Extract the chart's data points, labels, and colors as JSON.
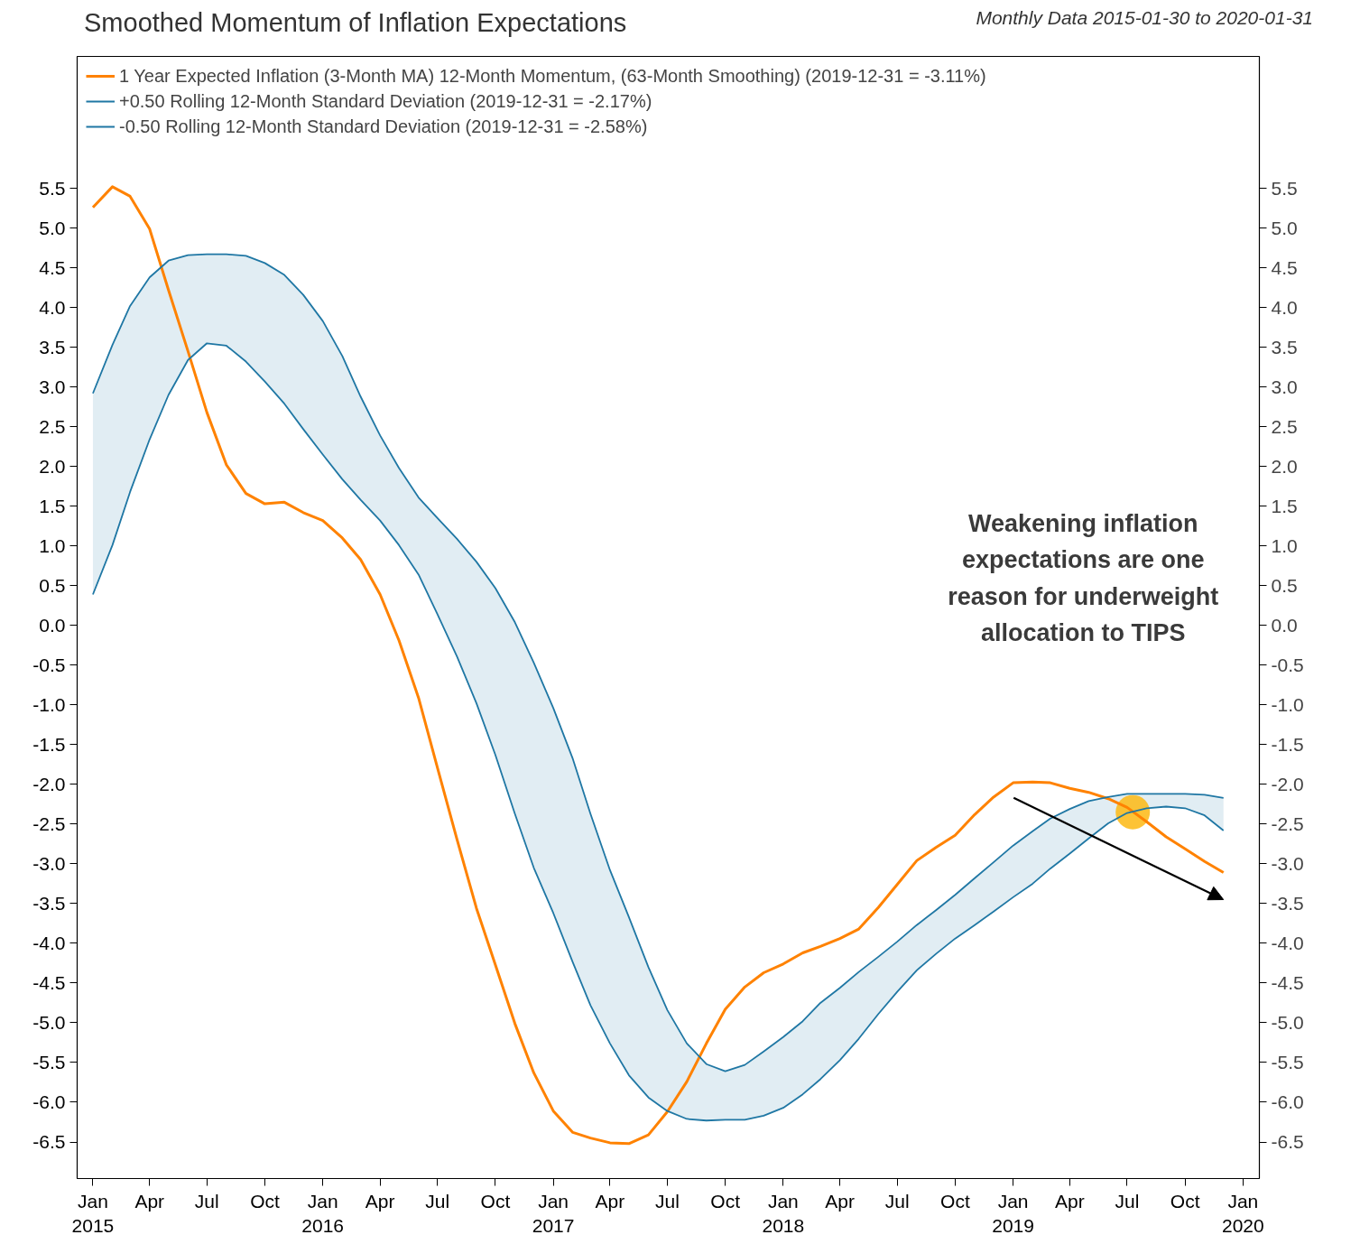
{
  "chart_data": {
    "type": "line",
    "title": "Smoothed Momentum of Inflation Expectations",
    "subtitle": "Monthly Data 2015-01-30 to 2020-01-31",
    "x": [
      "2015-01",
      "2015-02",
      "2015-03",
      "2015-04",
      "2015-05",
      "2015-06",
      "2015-07",
      "2015-08",
      "2015-09",
      "2015-10",
      "2015-11",
      "2015-12",
      "2016-01",
      "2016-02",
      "2016-03",
      "2016-04",
      "2016-05",
      "2016-06",
      "2016-07",
      "2016-08",
      "2016-09",
      "2016-10",
      "2016-11",
      "2016-12",
      "2017-01",
      "2017-02",
      "2017-03",
      "2017-04",
      "2017-05",
      "2017-06",
      "2017-07",
      "2017-08",
      "2017-09",
      "2017-10",
      "2017-11",
      "2017-12",
      "2018-01",
      "2018-02",
      "2018-03",
      "2018-04",
      "2018-05",
      "2018-06",
      "2018-07",
      "2018-08",
      "2018-09",
      "2018-10",
      "2018-11",
      "2018-12",
      "2019-01",
      "2019-02",
      "2019-03",
      "2019-04",
      "2019-05",
      "2019-06",
      "2019-07",
      "2019-08",
      "2019-09",
      "2019-10",
      "2019-11",
      "2019-12"
    ],
    "series": [
      {
        "name": "1 Year Expected Inflation (3-Month MA) 12-Month Momentum, (63-Month Smoothing) (2019-12-31 = -3.11%)",
        "color": "#ff8200",
        "values": [
          5.26,
          5.52,
          5.4,
          4.99,
          4.22,
          3.45,
          2.68,
          2.02,
          1.66,
          1.53,
          1.55,
          1.42,
          1.32,
          1.1,
          0.83,
          0.39,
          -0.19,
          -0.91,
          -1.79,
          -2.69,
          -3.56,
          -4.27,
          -5.01,
          -5.63,
          -6.11,
          -6.38,
          -6.45,
          -6.51,
          -6.52,
          -6.41,
          -6.12,
          -5.74,
          -5.26,
          -4.83,
          -4.55,
          -4.37,
          -4.26,
          -4.12,
          -4.04,
          -3.94,
          -3.82,
          -3.55,
          -3.26,
          -2.96,
          -2.79,
          -2.64,
          -2.38,
          -2.16,
          -1.98,
          -1.97,
          -1.98,
          -2.05,
          -2.1,
          -2.18,
          -2.29,
          -2.47,
          -2.66,
          -2.81,
          -2.97,
          -3.11
        ]
      },
      {
        "type": "scatter",
        "marker": "circle",
        "color": "#fdb913",
        "x": [
          "2019-07-10"
        ],
        "values": [
          -2.35
        ]
      },
      {
        "name": "+0.50 Rolling 12-Month Standard Deviation (2019-12-31 = -2.17%)",
        "color": "#1f77a4",
        "lower": [
          0.39,
          1.01,
          1.68,
          2.34,
          2.9,
          3.34,
          3.55,
          3.52,
          3.32,
          3.07,
          2.79,
          2.47,
          2.15,
          1.84,
          1.58,
          1.32,
          1.01,
          0.64,
          0.14,
          -0.39,
          -0.98,
          -1.63,
          -2.37,
          -3.05,
          -3.62,
          -4.24,
          -4.78,
          -5.26,
          -5.66,
          -5.94,
          -6.11,
          -6.21,
          -6.23,
          -6.22,
          -6.22,
          -6.17,
          -6.07,
          -5.9,
          -5.71,
          -5.47,
          -5.2,
          -4.89,
          -4.61,
          -4.34,
          -4.13,
          -3.94,
          -3.77,
          -3.6,
          -3.42,
          -3.25,
          -3.06,
          -2.87,
          -2.68,
          -2.49,
          -2.36,
          -2.3,
          -2.28,
          -2.3,
          -2.39,
          -2.58
        ],
        "upper": [
          2.92,
          3.53,
          4.02,
          4.38,
          4.59,
          4.66,
          4.67,
          4.67,
          4.65,
          4.56,
          4.41,
          4.16,
          3.83,
          3.39,
          2.88,
          2.39,
          1.98,
          1.61,
          1.35,
          1.09,
          0.8,
          0.47,
          0.04,
          -0.47,
          -1.04,
          -1.68,
          -2.37,
          -3.08,
          -3.67,
          -4.3,
          -4.84,
          -5.26,
          -5.52,
          -5.61,
          -5.53,
          -5.36,
          -5.18,
          -4.98,
          -4.75,
          -4.56,
          -4.36,
          -4.17,
          -3.98,
          -3.77,
          -3.58,
          -3.39,
          -3.18,
          -2.98,
          -2.77,
          -2.59,
          -2.43,
          -2.31,
          -2.21,
          -2.16,
          -2.12,
          -2.12,
          -2.12,
          -2.12,
          -2.13,
          -2.17
        ],
        "values": [
          2.92,
          3.53,
          4.02,
          4.38,
          4.59,
          4.66,
          4.67,
          4.67,
          4.65,
          4.56,
          4.41,
          4.16,
          3.83,
          3.39,
          2.88,
          2.39,
          1.98,
          1.61,
          1.35,
          1.09,
          0.8,
          0.47,
          0.04,
          -0.47,
          -1.04,
          -1.68,
          -2.37,
          -3.08,
          -3.67,
          -4.3,
          -4.84,
          -5.26,
          -5.52,
          -5.61,
          -5.53,
          -5.36,
          -5.18,
          -4.98,
          -4.75,
          -4.56,
          -4.36,
          -4.17,
          -3.98,
          -3.77,
          -3.58,
          -3.39,
          -3.18,
          -2.98,
          -2.77,
          -2.59,
          -2.43,
          -2.31,
          -2.21,
          -2.16,
          -2.12,
          -2.12,
          -2.12,
          -2.12,
          -2.13,
          -2.17
        ]
      },
      {
        "name": "-0.50 Rolling 12-Month Standard Deviation (2019-12-31 = -2.58%)",
        "color": "#1f77a4",
        "values": [
          0.39,
          1.01,
          1.68,
          2.34,
          2.9,
          3.34,
          3.55,
          3.52,
          3.32,
          3.07,
          2.79,
          2.47,
          2.15,
          1.84,
          1.58,
          1.32,
          1.01,
          0.64,
          0.14,
          -0.39,
          -0.98,
          -1.63,
          -2.37,
          -3.05,
          -3.62,
          -4.24,
          -4.78,
          -5.26,
          -5.66,
          -5.94,
          -6.11,
          -6.21,
          -6.23,
          -6.22,
          -6.22,
          -6.17,
          -6.07,
          -5.9,
          -5.71,
          -5.47,
          -5.2,
          -4.89,
          -4.61,
          -4.34,
          -4.13,
          -3.94,
          -3.77,
          -3.6,
          -3.42,
          -3.25,
          -3.06,
          -2.87,
          -2.68,
          -2.49,
          -2.36,
          -2.3,
          -2.28,
          -2.3,
          -2.39,
          -2.58
        ]
      }
    ],
    "xlim": [
      "2014-12-07",
      "2020-01-27"
    ],
    "xticks": [
      {
        "value": "2015-01",
        "label": "Jan\n2015"
      },
      {
        "value": "2015-04",
        "label": "Apr"
      },
      {
        "value": "2015-07",
        "label": "Jul"
      },
      {
        "value": "2015-10",
        "label": "Oct"
      },
      {
        "value": "2016-01",
        "label": "Jan\n2016"
      },
      {
        "value": "2016-04",
        "label": "Apr"
      },
      {
        "value": "2016-07",
        "label": "Jul"
      },
      {
        "value": "2016-10",
        "label": "Oct"
      },
      {
        "value": "2017-01",
        "label": "Jan\n2017"
      },
      {
        "value": "2017-04",
        "label": "Apr"
      },
      {
        "value": "2017-07",
        "label": "Jul"
      },
      {
        "value": "2017-10",
        "label": "Oct"
      },
      {
        "value": "2018-01",
        "label": "Jan\n2018"
      },
      {
        "value": "2018-04",
        "label": "Apr"
      },
      {
        "value": "2018-07",
        "label": "Jul"
      },
      {
        "value": "2018-10",
        "label": "Oct"
      },
      {
        "value": "2019-01",
        "label": "Jan\n2019"
      },
      {
        "value": "2019-04",
        "label": "Apr"
      },
      {
        "value": "2019-07",
        "label": "Jul"
      },
      {
        "value": "2019-10",
        "label": "Oct"
      },
      {
        "value": "2020-01",
        "label": "Jan\n2020"
      }
    ],
    "ylim": [
      -6.96,
      7.16
    ],
    "yticks": [
      {
        "value": -6.5,
        "label": "-6.5"
      },
      {
        "value": -6,
        "label": "-6.0"
      },
      {
        "value": -5.5,
        "label": "-5.5"
      },
      {
        "value": -5,
        "label": "-5.0"
      },
      {
        "value": -4.5,
        "label": "-4.5"
      },
      {
        "value": -4,
        "label": "-4.0"
      },
      {
        "value": -3.5,
        "label": "-3.5"
      },
      {
        "value": -3,
        "label": "-3.0"
      },
      {
        "value": -2.5,
        "label": "-2.5"
      },
      {
        "value": -2,
        "label": "-2.0"
      },
      {
        "value": -1.5,
        "label": "-1.5"
      },
      {
        "value": -1,
        "label": "-1.0"
      },
      {
        "value": -0.5,
        "label": "-0.5"
      },
      {
        "value": 0,
        "label": "0.0"
      },
      {
        "value": 0.5,
        "label": "0.5"
      },
      {
        "value": 1,
        "label": "1.0"
      },
      {
        "value": 1.5,
        "label": "1.5"
      },
      {
        "value": 2,
        "label": "2.0"
      },
      {
        "value": 2.5,
        "label": "2.5"
      },
      {
        "value": 3,
        "label": "3.0"
      },
      {
        "value": 3.5,
        "label": "3.5"
      },
      {
        "value": 4,
        "label": "4.0"
      },
      {
        "value": 4.5,
        "label": "4.5"
      },
      {
        "value": 5,
        "label": "5.0"
      },
      {
        "value": 5.5,
        "label": "5.5"
      }
    ],
    "y2lim": [
      -6.96,
      7.16
    ],
    "y2ticks": [
      {
        "value": -6.5,
        "label": "-6.5"
      },
      {
        "value": -6,
        "label": "-6.0"
      },
      {
        "value": -5.5,
        "label": "-5.5"
      },
      {
        "value": -5,
        "label": "-5.0"
      },
      {
        "value": -4.5,
        "label": "-4.5"
      },
      {
        "value": -4,
        "label": "-4.0"
      },
      {
        "value": -3.5,
        "label": "-3.5"
      },
      {
        "value": -3,
        "label": "-3.0"
      },
      {
        "value": -2.5,
        "label": "-2.5"
      },
      {
        "value": -2,
        "label": "-2.0"
      },
      {
        "value": -1.5,
        "label": "-1.5"
      },
      {
        "value": -1,
        "label": "-1.0"
      },
      {
        "value": -0.5,
        "label": "-0.5"
      },
      {
        "value": 0,
        "label": "0.0"
      },
      {
        "value": 0.5,
        "label": "0.5"
      },
      {
        "value": 1,
        "label": "1.0"
      },
      {
        "value": 1.5,
        "label": "1.5"
      },
      {
        "value": 2,
        "label": "2.0"
      },
      {
        "value": 2.5,
        "label": "2.5"
      },
      {
        "value": 3,
        "label": "3.0"
      },
      {
        "value": 3.5,
        "label": "3.5"
      },
      {
        "value": 4,
        "label": "4.0"
      },
      {
        "value": 4.5,
        "label": "4.5"
      },
      {
        "value": 5,
        "label": "5.0"
      },
      {
        "value": 5.5,
        "label": "5.5"
      }
    ],
    "legend": "top left",
    "annotations": [
      "Weakening inflation expectations are one reason for underweight allocation to TIPS"
    ]
  }
}
